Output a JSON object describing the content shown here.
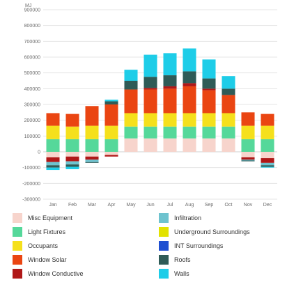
{
  "chart_data": {
    "type": "bar",
    "stacked": true,
    "y_unit": "MJ",
    "categories": [
      "Jan",
      "Feb",
      "Mar",
      "Apr",
      "May",
      "Jun",
      "Jul",
      "Aug",
      "Sep",
      "Oct",
      "Nov",
      "Dec"
    ],
    "ylim": [
      -300000,
      900000
    ],
    "yticks": [
      -300000,
      -200000,
      -100000,
      0,
      100000,
      200000,
      300000,
      400000,
      500000,
      600000,
      700000,
      800000,
      900000
    ],
    "ytick_labels": [
      "-300000",
      "-200000",
      "-100000",
      "0",
      "100000",
      "200000",
      "300000",
      "400000",
      "500000",
      "600000",
      "700000",
      "800000",
      "900000"
    ],
    "grid": true,
    "legend_position": "bottom",
    "series": [
      {
        "name": "Misc Equipment",
        "color": "#f7d4cc",
        "values": [
          -35000,
          -30000,
          -30000,
          -20000,
          85000,
          85000,
          85000,
          85000,
          85000,
          85000,
          -35000,
          -40000
        ]
      },
      {
        "name": "Light Fixtures",
        "color": "#55d89a",
        "values": [
          80000,
          80000,
          80000,
          80000,
          75000,
          75000,
          75000,
          75000,
          75000,
          75000,
          80000,
          80000
        ]
      },
      {
        "name": "Occupants",
        "color": "#f5e01c",
        "values": [
          85000,
          80000,
          85000,
          85000,
          85000,
          85000,
          85000,
          85000,
          85000,
          85000,
          85000,
          85000
        ]
      },
      {
        "name": "Window Solar",
        "color": "#ea4512",
        "values": [
          80000,
          80000,
          125000,
          135000,
          150000,
          150000,
          155000,
          170000,
          145000,
          115000,
          85000,
          75000
        ]
      },
      {
        "name": "Window Conductive",
        "color": "#b01818",
        "values": [
          -30000,
          -30000,
          -20000,
          -10000,
          0,
          10000,
          15000,
          20000,
          10000,
          0,
          -15000,
          -30000
        ]
      },
      {
        "name": "Infiltration",
        "color": "#6ec3cf",
        "values": [
          -20000,
          -20000,
          -15000,
          0,
          0,
          0,
          0,
          0,
          0,
          0,
          -5000,
          -15000
        ]
      },
      {
        "name": "Underground Surroundings",
        "color": "#e2e200",
        "values": [
          0,
          0,
          0,
          0,
          0,
          0,
          0,
          0,
          0,
          0,
          0,
          0
        ]
      },
      {
        "name": "INT Surroundings",
        "color": "#1f4fd1",
        "values": [
          0,
          0,
          0,
          0,
          0,
          0,
          0,
          0,
          0,
          0,
          0,
          0
        ]
      },
      {
        "name": "Roofs",
        "color": "#2f5b57",
        "values": [
          -15000,
          -15000,
          -5000,
          20000,
          55000,
          70000,
          70000,
          75000,
          65000,
          40000,
          -5000,
          -10000
        ]
      },
      {
        "name": "Walls",
        "color": "#1ecde8",
        "values": [
          -15000,
          -15000,
          0,
          10000,
          70000,
          140000,
          140000,
          145000,
          120000,
          80000,
          0,
          -5000
        ]
      }
    ]
  }
}
